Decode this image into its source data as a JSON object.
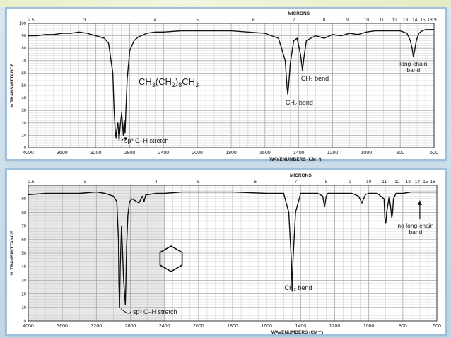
{
  "chart_data": [
    {
      "type": "line",
      "compound_formula": {
        "main": "CH",
        "s1": "3",
        "m2": "(CH",
        "s2": "2",
        "m3": ")",
        "s3": "8",
        "m4": "CH",
        "s4": "3"
      },
      "xlabel": "WAVENUMBERS (CM⁻¹)",
      "ylabel": "% TRANSMITTANCE",
      "top_axis_label": "MICRONS",
      "xlim": [
        4000,
        600
      ],
      "ylim": [
        0,
        100
      ],
      "x_ticks": [
        "4000",
        "3600",
        "3200",
        "2800",
        "2400",
        "2000",
        "1800",
        "1600",
        "1400",
        "1200",
        "1000",
        "800",
        "600"
      ],
      "y_ticks": [
        "100",
        "90",
        "80",
        "70",
        "60",
        "50",
        "40",
        "30",
        "20",
        "10",
        "0"
      ],
      "micron_ticks": [
        "2.5",
        "3",
        "4",
        "5",
        "6",
        "7",
        "8",
        "9",
        "10",
        "11",
        "12",
        "13",
        "14",
        "15",
        "16",
        "19"
      ],
      "grid": true,
      "series": [
        {
          "x": [
            4000,
            3900,
            3800,
            3700,
            3600,
            3500,
            3400,
            3300,
            3200,
            3100,
            3050,
            3000,
            2985,
            2970,
            2962,
            2955,
            2940,
            2926,
            2912,
            2895,
            2875,
            2865,
            2855,
            2845,
            2830,
            2800,
            2750,
            2700,
            2600,
            2500,
            2400,
            2200,
            2000,
            1800,
            1700,
            1600,
            1520,
            1480,
            1470,
            1465,
            1460,
            1450,
            1430,
            1410,
            1390,
            1378,
            1370,
            1355,
            1330,
            1300,
            1250,
            1200,
            1150,
            1100,
            1050,
            1000,
            950,
            900,
            850,
            800,
            780,
            760,
            740,
            730,
            722,
            715,
            705,
            690,
            670,
            650,
            630,
            600
          ],
          "y": [
            90,
            90,
            91,
            91,
            92,
            92,
            93,
            92,
            90,
            88,
            84,
            60,
            30,
            12,
            8,
            14,
            20,
            6,
            18,
            28,
            10,
            22,
            12,
            30,
            55,
            78,
            86,
            89,
            92,
            93,
            93,
            94,
            94,
            94,
            93,
            92,
            88,
            70,
            50,
            43,
            50,
            68,
            86,
            88,
            75,
            62,
            72,
            86,
            88,
            90,
            88,
            91,
            90,
            92,
            91,
            93,
            94,
            94,
            94,
            94,
            93,
            92,
            86,
            80,
            73,
            78,
            86,
            92,
            94,
            95,
            95,
            95
          ]
        }
      ],
      "annotations": [
        {
          "text": "sp³ C–H stretch",
          "x": 2880,
          "y": 10
        },
        {
          "text": "CH₂ bend",
          "x": 1465,
          "y": 43
        },
        {
          "text": "CH₃ bend",
          "x": 1378,
          "y": 62
        },
        {
          "text": "long-chain band",
          "x": 722,
          "y": 73
        }
      ]
    },
    {
      "type": "line",
      "xlabel": "WAVENUMBERS (CM⁻¹)",
      "ylabel": "% TRANSMITTANCE",
      "top_axis_label": "MICRONS",
      "xlim": [
        4000,
        600
      ],
      "ylim": [
        0,
        100
      ],
      "x_ticks": [
        "4000",
        "3600",
        "3200",
        "2800",
        "2400",
        "2000",
        "1800",
        "1600",
        "1400",
        "1200",
        "1000",
        "800",
        "600"
      ],
      "y_ticks": [
        "90",
        "80",
        "70",
        "60",
        "50",
        "40",
        "30",
        "20",
        "10",
        "0"
      ],
      "micron_ticks": [
        "2.5",
        "3",
        "4",
        "5",
        "6",
        "7",
        "8",
        "9",
        "10",
        "11",
        "12",
        "13",
        "14",
        "15",
        "16"
      ],
      "grid": true,
      "series": [
        {
          "x": [
            4000,
            3800,
            3600,
            3400,
            3200,
            3100,
            3000,
            2960,
            2940,
            2935,
            2928,
            2920,
            2905,
            2895,
            2880,
            2860,
            2853,
            2845,
            2830,
            2810,
            2780,
            2700,
            2660,
            2640,
            2620,
            2600,
            2500,
            2400,
            2200,
            2000,
            1800,
            1600,
            1500,
            1470,
            1455,
            1450,
            1445,
            1430,
            1400,
            1300,
            1270,
            1260,
            1250,
            1240,
            1200,
            1100,
            1060,
            1040,
            1030,
            1020,
            1000,
            950,
            910,
            905,
            900,
            895,
            880,
            870,
            865,
            860,
            855,
            840,
            800,
            750,
            700,
            650,
            600
          ],
          "y": [
            93,
            94,
            94,
            94,
            95,
            94,
            92,
            88,
            60,
            28,
            10,
            40,
            70,
            55,
            30,
            12,
            28,
            55,
            78,
            88,
            90,
            87,
            92,
            88,
            93,
            93,
            94,
            94,
            95,
            95,
            95,
            94,
            94,
            80,
            45,
            22,
            45,
            80,
            94,
            94,
            92,
            84,
            92,
            94,
            94,
            94,
            92,
            87,
            90,
            93,
            94,
            94,
            90,
            75,
            72,
            80,
            92,
            82,
            76,
            80,
            90,
            94,
            94,
            95,
            95,
            95,
            95
          ]
        }
      ],
      "annotations": [
        {
          "text": "sp³ C–H stretch",
          "x": 2928,
          "y": 10
        },
        {
          "text": "CH₂ bend",
          "x": 1450,
          "y": 22
        },
        {
          "text": "no long-chain band",
          "x": 700,
          "y": 95
        }
      ]
    }
  ],
  "colors": {
    "grid": "#a9a9a9",
    "trace": "#111111",
    "panel": "#ffffff",
    "frame": "#9fc0dc",
    "shaded_region": "#c9c9c9"
  }
}
